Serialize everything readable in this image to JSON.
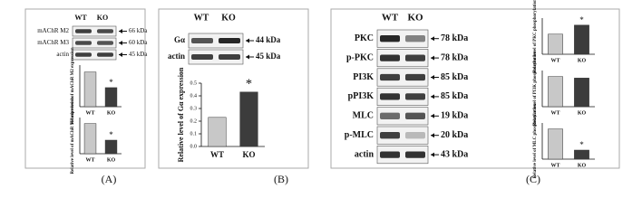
{
  "chart_data": [
    {
      "type": "bar",
      "y_label": "Relative level of mAChR M2 expression",
      "categories": [
        "WT",
        "KO"
      ],
      "values": [
        1.0,
        0.55
      ],
      "colors": [
        "#c8c8c8",
        "#3c3c3c"
      ],
      "ylim": [
        0,
        1.2
      ],
      "annotation": "*"
    },
    {
      "type": "bar",
      "y_label": "Relative level of mAChR M3 expression",
      "categories": [
        "WT",
        "KO"
      ],
      "values": [
        1.0,
        0.45
      ],
      "colors": [
        "#c8c8c8",
        "#3c3c3c"
      ],
      "ylim": [
        0,
        1.2
      ],
      "annotation": "*"
    },
    {
      "type": "bar",
      "y_label": "Relative level of Gα expression",
      "categories": [
        "WT",
        "KO"
      ],
      "values": [
        0.23,
        0.43
      ],
      "colors": [
        "#c8c8c8",
        "#3c3c3c"
      ],
      "ylim": [
        0,
        0.5
      ],
      "yticks": [
        {
          "value": 0,
          "label": "0.0"
        },
        {
          "value": 0.1,
          "label": "0.1"
        },
        {
          "value": 0.2,
          "label": "0.2"
        },
        {
          "value": 0.3,
          "label": "0.3"
        },
        {
          "value": 0.4,
          "label": "0.4"
        },
        {
          "value": 0.5,
          "label": "0.5"
        }
      ],
      "annotation": "*"
    },
    {
      "type": "bar",
      "y_label": "Relative level of PKC phosphorylation",
      "categories": [
        "WT",
        "KO"
      ],
      "values": [
        1.0,
        1.45
      ],
      "colors": [
        "#c8c8c8",
        "#3c3c3c"
      ],
      "ylim": [
        0,
        1.8
      ],
      "annotation": "*"
    },
    {
      "type": "bar",
      "y_label": "Relative level of PI3K phosphorylation",
      "categories": [
        "WT",
        "KO"
      ],
      "values": [
        1.0,
        0.95
      ],
      "colors": [
        "#c8c8c8",
        "#3c3c3c"
      ],
      "ylim": [
        0,
        1.2
      ]
    },
    {
      "type": "bar",
      "y_label": "Relative level of MLC phosphorylation",
      "categories": [
        "WT",
        "KO"
      ],
      "values": [
        1.0,
        0.3
      ],
      "colors": [
        "#c8c8c8",
        "#3c3c3c"
      ],
      "ylim": [
        0,
        1.2
      ],
      "annotation": "*"
    }
  ],
  "blots": [
    {
      "header": [
        "WT",
        "KO"
      ],
      "rows": [
        {
          "label": "mAChR M2",
          "size": "66 kDa"
        },
        {
          "label": "mAChR M3",
          "size": "60 kDa"
        },
        {
          "label": "actin",
          "size": "45 kDa"
        }
      ]
    },
    {
      "header": [
        "WT",
        "KO"
      ],
      "rows": [
        {
          "label": "Gα",
          "size": "44 kDa"
        },
        {
          "label": "actin",
          "size": "45 kDa"
        }
      ]
    },
    {
      "header": [
        "WT",
        "KO"
      ],
      "rows": [
        {
          "label": "PKC",
          "size": "78 kDa"
        },
        {
          "label": "p-PKC",
          "size": "78 kDa"
        },
        {
          "label": "PI3K",
          "size": "85 kDa"
        },
        {
          "label": "pPI3K",
          "size": "85 kDa"
        },
        {
          "label": "MLC",
          "size": "19 kDa"
        },
        {
          "label": "p-MLC",
          "size": "20 kDa"
        },
        {
          "label": "actin",
          "size": "43 kDa"
        }
      ]
    }
  ],
  "panels": [
    "(A)",
    "(B)",
    "(C)"
  ]
}
